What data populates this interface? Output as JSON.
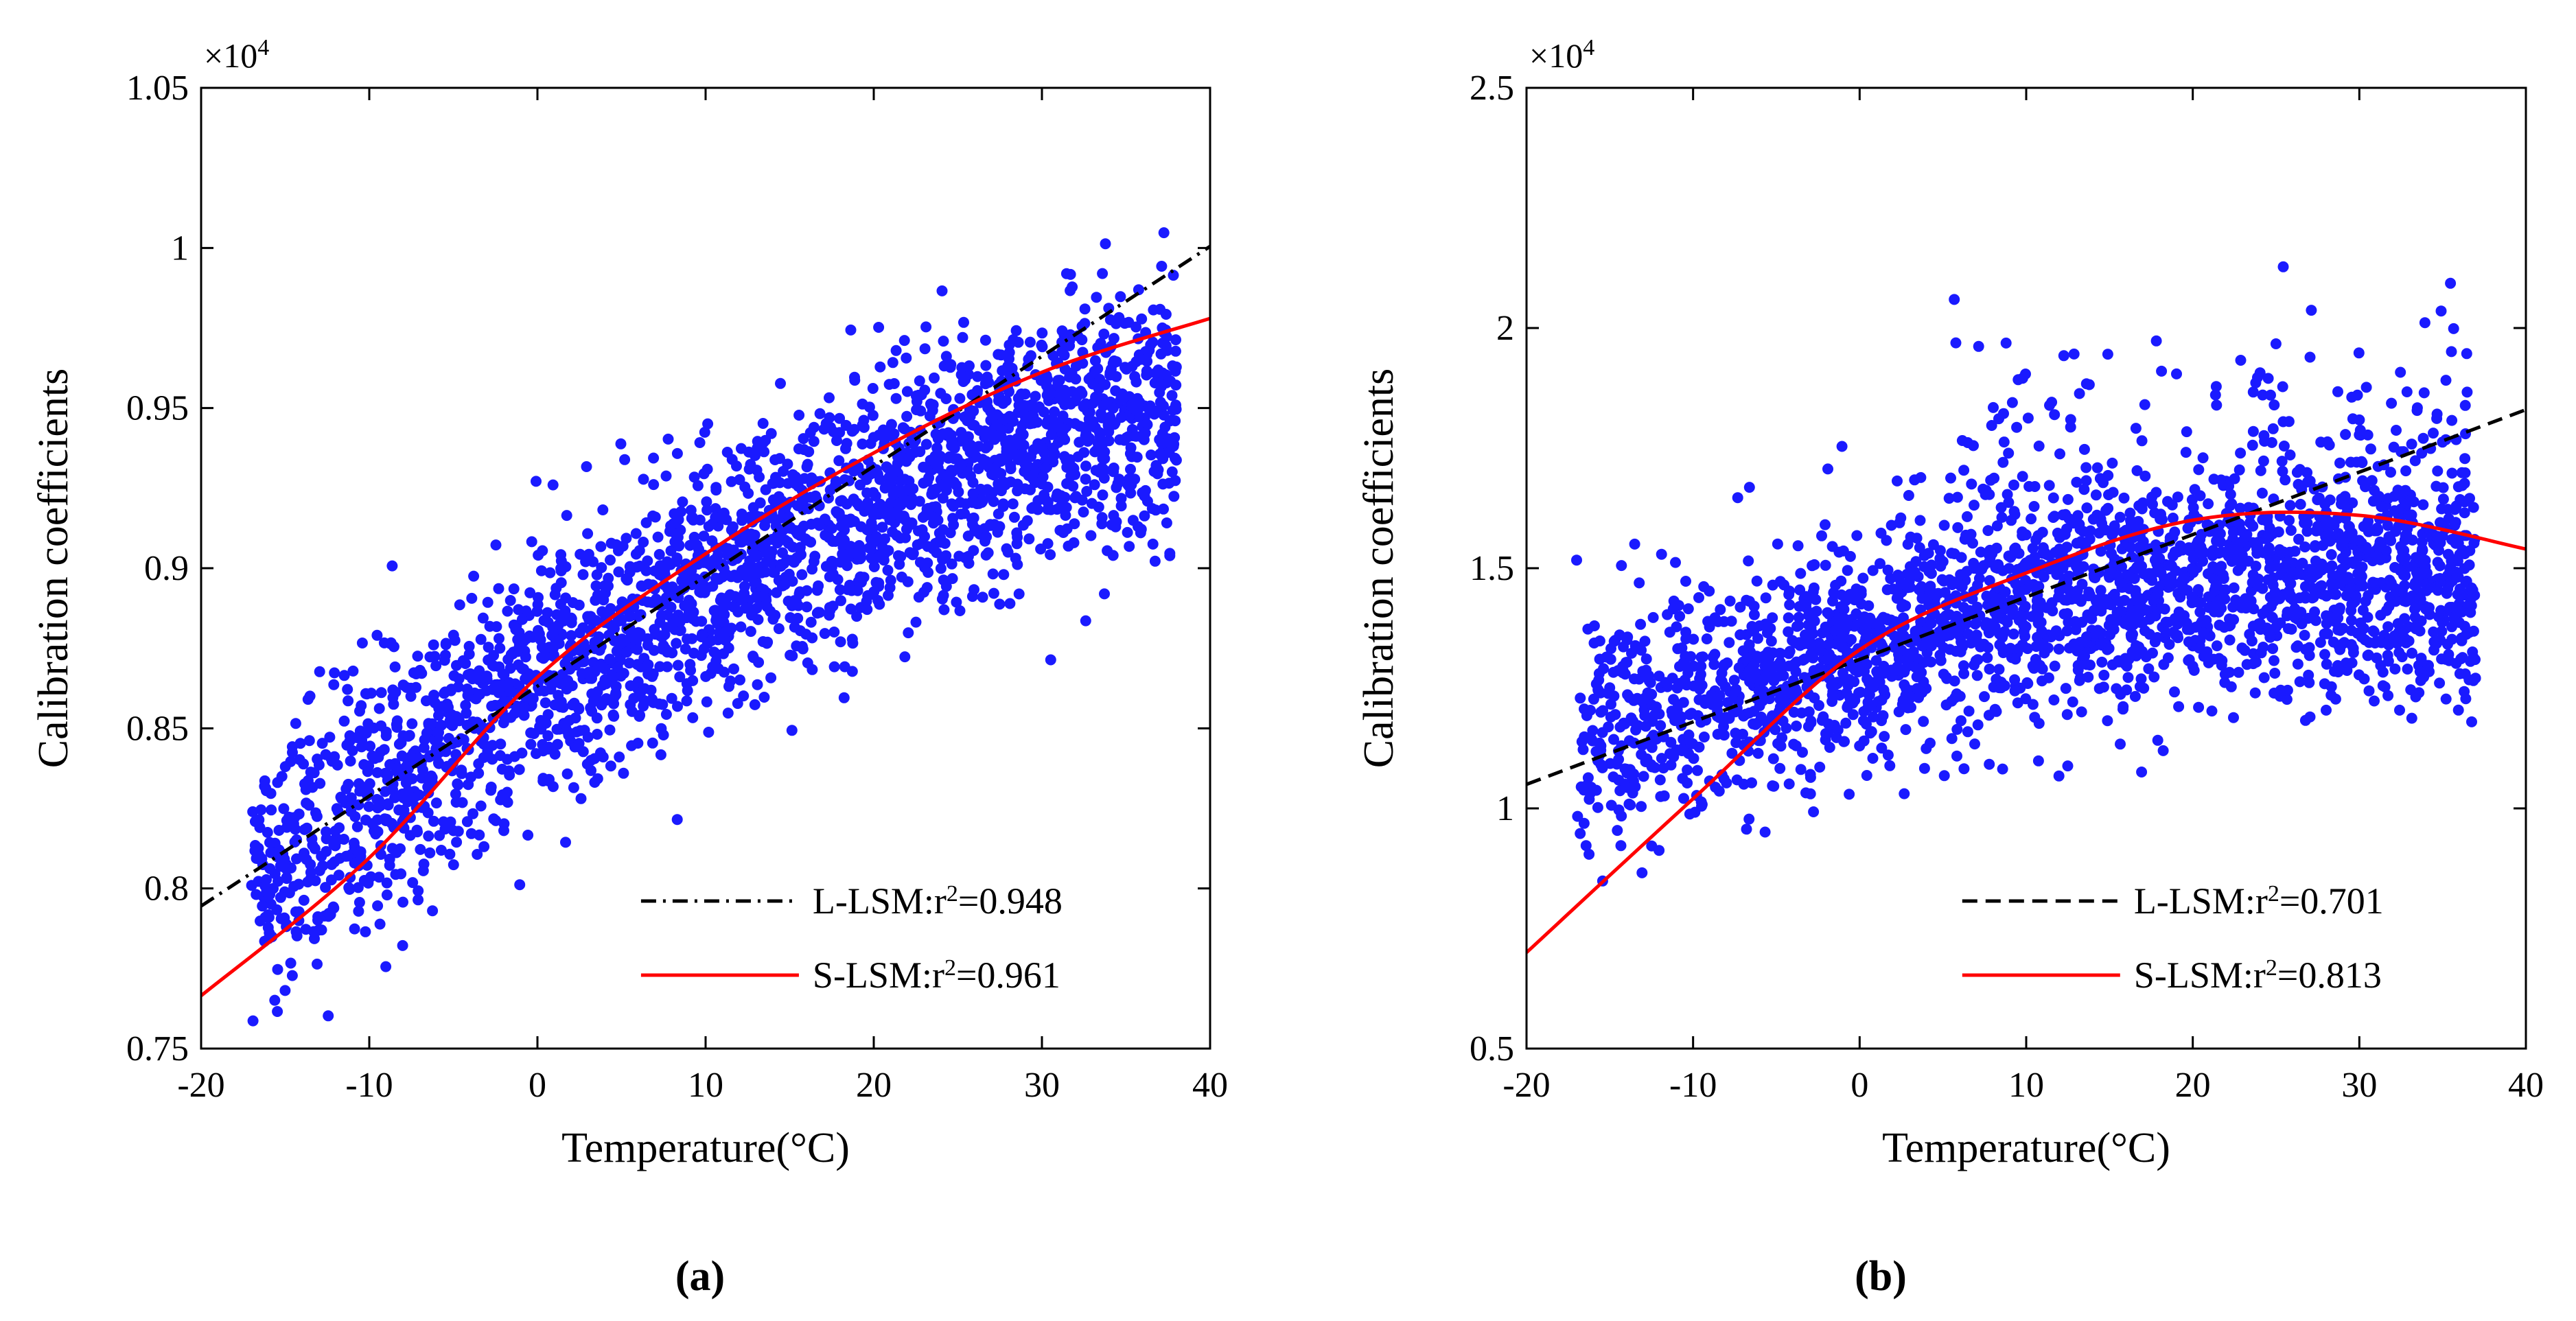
{
  "chart_data": [
    {
      "type": "scatter",
      "panel_label": "(a)",
      "xlabel": "Temperature(°C)",
      "ylabel": "Calibration coefficients",
      "y_multiplier": "×10",
      "y_multiplier_exp": "4",
      "xlim": [
        -20,
        40
      ],
      "ylim": [
        0.75,
        1.05
      ],
      "xticks": [
        -20,
        -10,
        0,
        10,
        20,
        30,
        40
      ],
      "xtick_labels": [
        "-20",
        "-10",
        "0",
        "10",
        "20",
        "30",
        "40"
      ],
      "yticks": [
        0.75,
        0.8,
        0.85,
        0.9,
        0.95,
        1.0,
        1.05
      ],
      "ytick_labels": [
        "0.75",
        "0.8",
        "0.85",
        "0.9",
        "0.95",
        "1",
        "1.05"
      ],
      "scatter": {
        "color": "#1a1aff",
        "x_range": [
          -17,
          38
        ],
        "trend_linear": {
          "intercept": 0.8698,
          "slope": 0.0033
        },
        "trend_quad": {
          "a": -2.13e-05,
          "b": 0.003185,
          "c": 0.864
        },
        "spread": 0.02,
        "count": 2600
      },
      "fits": [
        {
          "name": "L-LSM",
          "label": "L-LSM:r",
          "sup": "2",
          "value": "=0.948",
          "color": "#000000",
          "style": "dash-dot",
          "points": [
            [
              -20,
              0.7945
            ],
            [
              40,
              1.0005
            ]
          ]
        },
        {
          "name": "S-LSM",
          "label": "S-LSM:r",
          "sup": "2",
          "value": "=0.961",
          "color": "#ff0000",
          "style": "solid",
          "points": [
            [
              -20,
              0.7665
            ],
            [
              -10,
              0.8096
            ],
            [
              0,
              0.866
            ],
            [
              10,
              0.9045
            ],
            [
              20,
              0.936
            ],
            [
              30,
              0.9612
            ],
            [
              40,
              0.978
            ]
          ]
        }
      ]
    },
    {
      "type": "scatter",
      "panel_label": "(b)",
      "xlabel": "Temperature(°C)",
      "ylabel": "Calibration coefficients",
      "y_multiplier": "×10",
      "y_multiplier_exp": "4",
      "xlim": [
        -20,
        40
      ],
      "ylim": [
        0.5,
        2.5
      ],
      "xticks": [
        -20,
        -10,
        0,
        10,
        20,
        30,
        40
      ],
      "xtick_labels": [
        "-20",
        "-10",
        "0",
        "10",
        "20",
        "30",
        "40"
      ],
      "yticks": [
        0.5,
        1.0,
        1.5,
        2.0,
        2.5
      ],
      "ytick_labels": [
        "0.5",
        "1",
        "1.5",
        "2",
        "2.5"
      ],
      "scatter": {
        "color": "#1a1aff",
        "x_range": [
          -17,
          37
        ],
        "trend_linear": {
          "intercept": 1.32,
          "slope": 0.0125
        },
        "trend_quad": {
          "a": -0.000167,
          "b": 0.00933,
          "c": 1.33
        },
        "spread": 0.12,
        "count": 2600
      },
      "fits": [
        {
          "name": "L-LSM",
          "label": "L-LSM:r",
          "sup": "2",
          "value": "=0.701",
          "color": "#000000",
          "style": "dash",
          "points": [
            [
              -20,
              1.05
            ],
            [
              40,
              1.83
            ]
          ]
        },
        {
          "name": "S-LSM",
          "label": "S-LSM:r",
          "sup": "2",
          "value": "=0.813",
          "color": "#ff0000",
          "style": "solid",
          "points": [
            [
              -20,
              0.7
            ],
            [
              -10,
              1.02
            ],
            [
              0,
              1.33
            ],
            [
              10,
              1.49
            ],
            [
              20,
              1.6
            ],
            [
              30,
              1.61
            ],
            [
              40,
              1.54
            ]
          ]
        }
      ]
    }
  ]
}
